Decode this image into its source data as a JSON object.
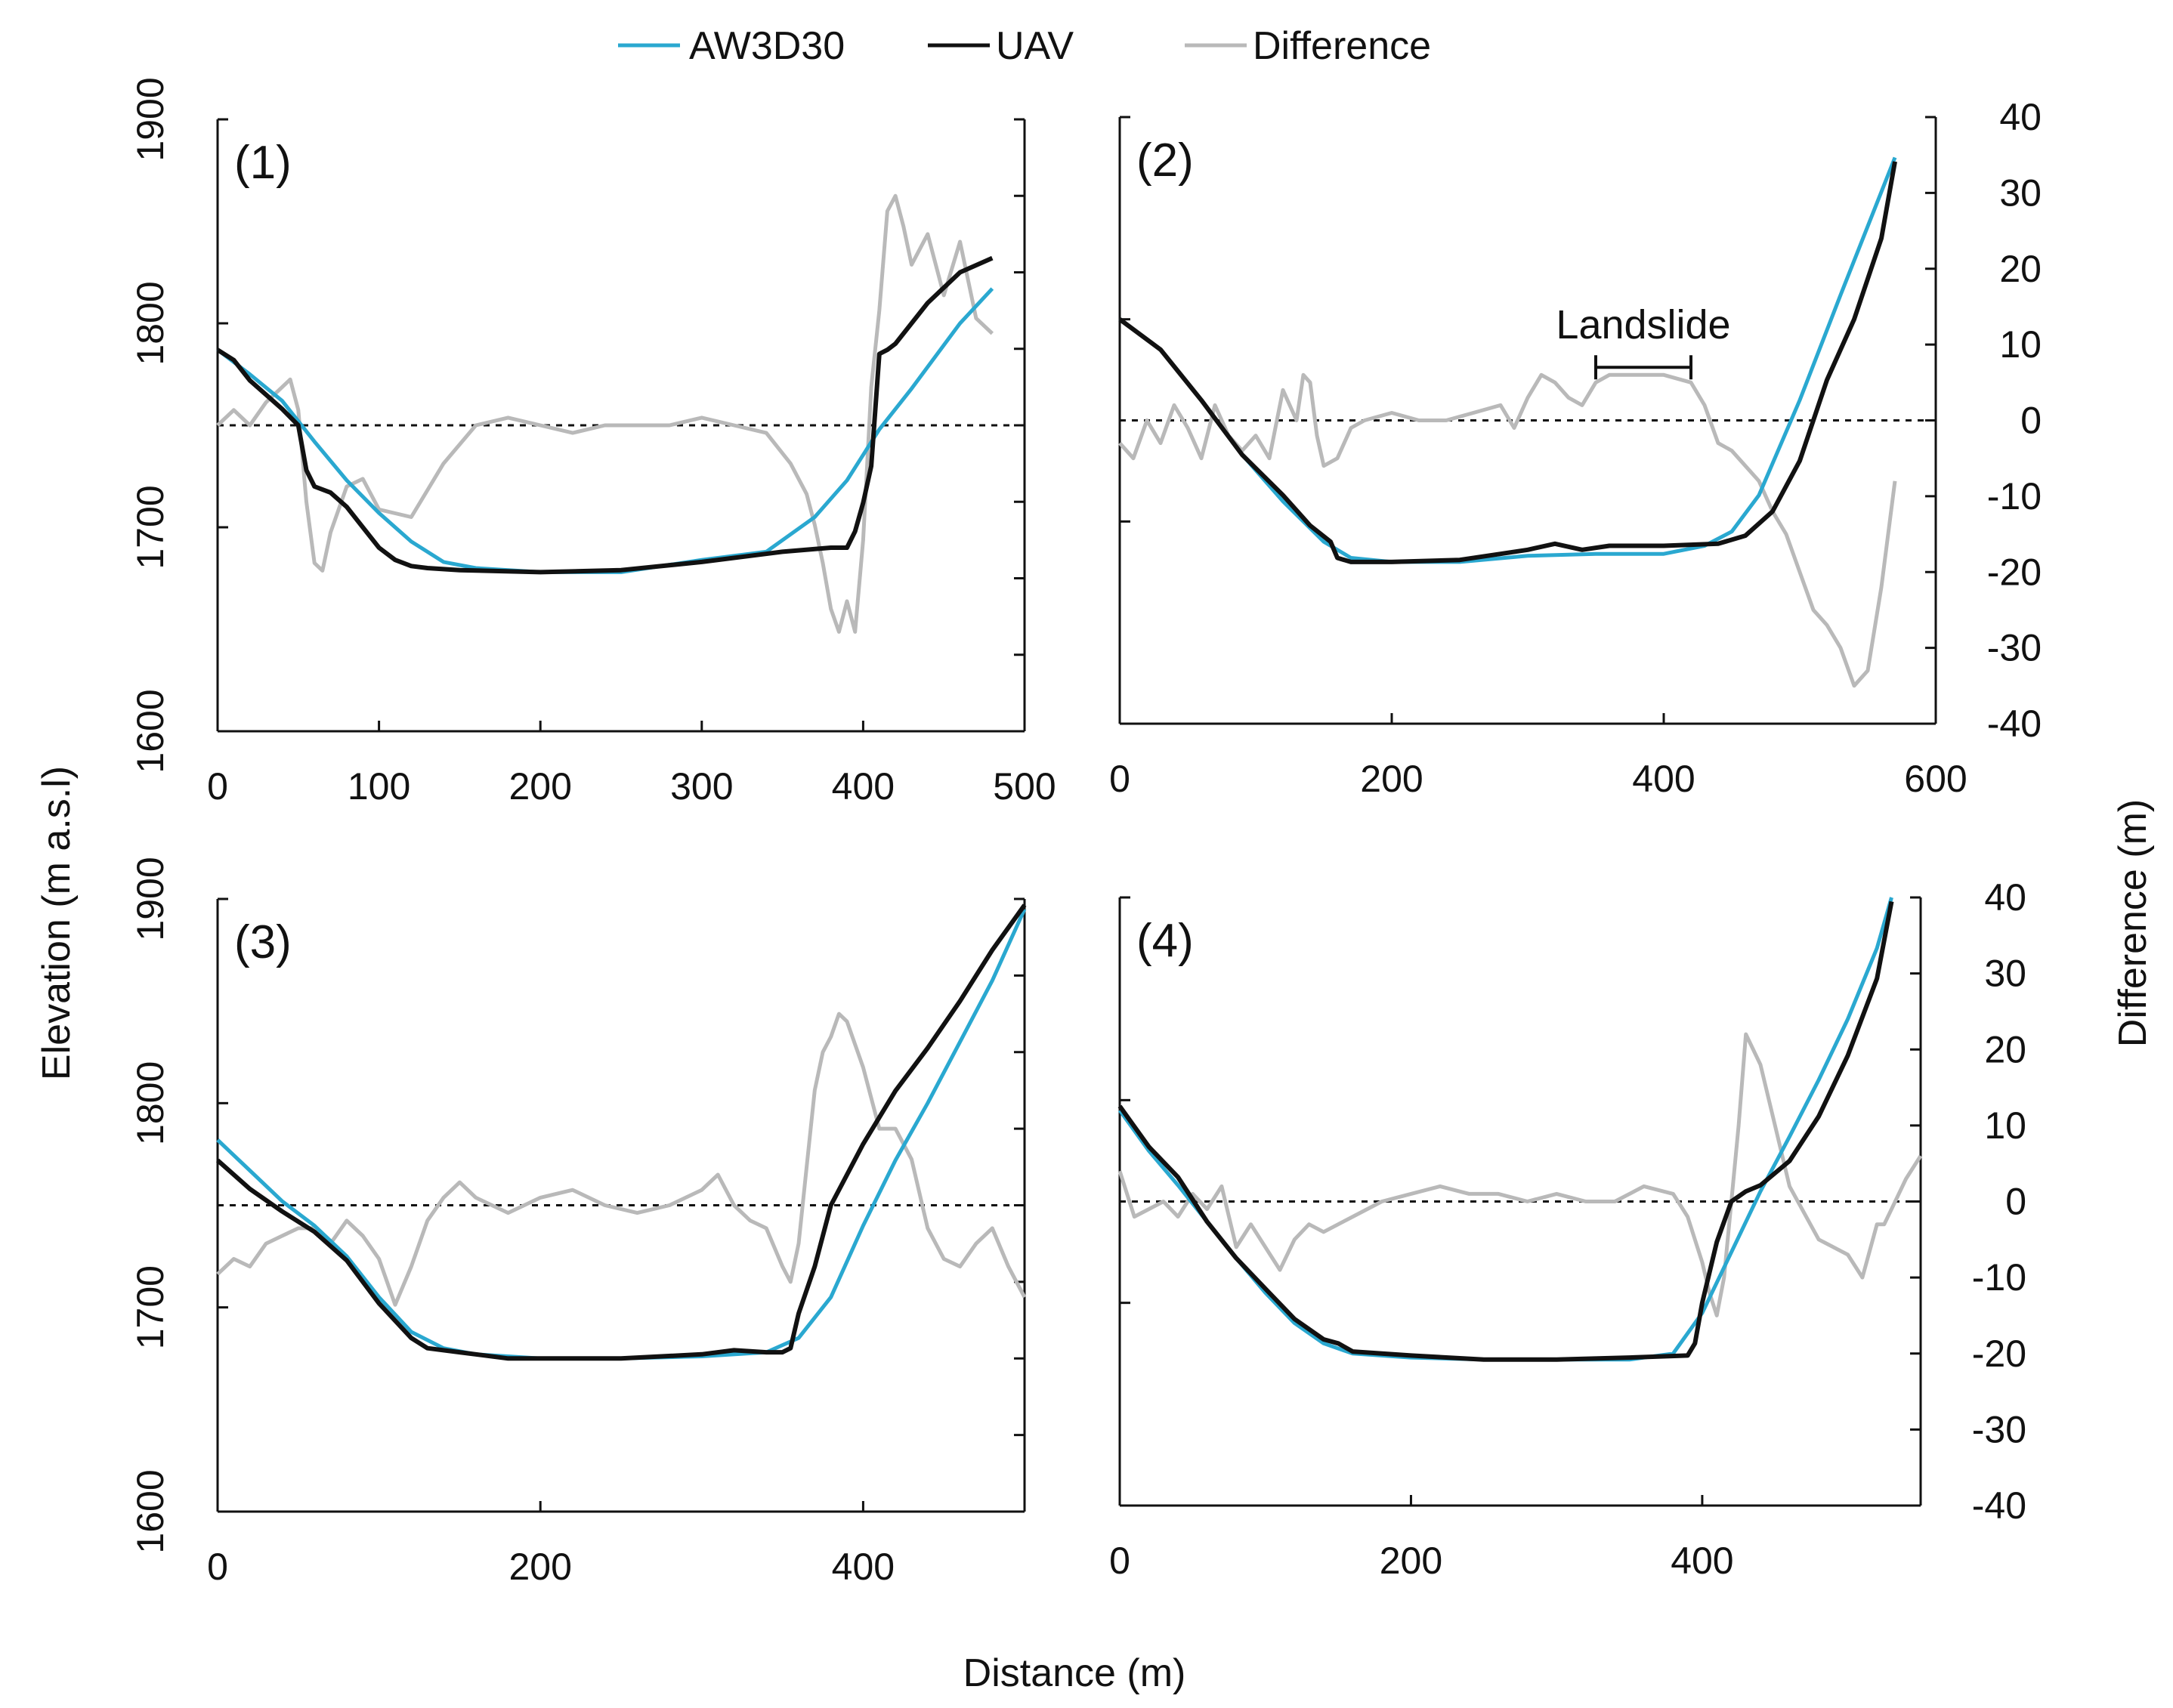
{
  "colors": {
    "aw3d30": "#2aa8d0",
    "uav": "#111111",
    "difference": "#b9b9b9",
    "zero": "#111111"
  },
  "legend": {
    "aw3d30": "AW3D30",
    "uav": "UAV",
    "difference": "Difference"
  },
  "axes": {
    "left_title": "Elevation (m a.s.l)",
    "right_title": "Difference (m)",
    "bottom_title": "Distance (m)"
  },
  "chart_data": [
    {
      "type": "line",
      "panel": "(1)",
      "xlim": [
        0,
        500
      ],
      "xticks": [
        0,
        100,
        200,
        300,
        400,
        500
      ],
      "ylim": [
        1600,
        1900
      ],
      "yticks": [
        1600,
        1700,
        1800,
        1900
      ],
      "y_labels_shown": true,
      "y2lim": [
        -40,
        40
      ],
      "y2ticks": [
        -40,
        -30,
        -20,
        -10,
        0,
        10,
        20,
        30,
        40
      ],
      "y2_labels_shown": false,
      "series": [
        {
          "name": "AW3D30",
          "x": [
            0,
            20,
            40,
            60,
            80,
            100,
            120,
            140,
            160,
            200,
            250,
            300,
            340,
            370,
            390,
            410,
            430,
            460,
            480
          ],
          "y": [
            1787,
            1775,
            1762,
            1742,
            1723,
            1707,
            1693,
            1683,
            1680,
            1678,
            1678,
            1684,
            1688,
            1705,
            1723,
            1748,
            1768,
            1800,
            1817
          ]
        },
        {
          "name": "UAV",
          "x": [
            0,
            10,
            20,
            30,
            40,
            50,
            55,
            60,
            70,
            80,
            90,
            100,
            110,
            120,
            130,
            150,
            200,
            250,
            300,
            350,
            380,
            390,
            395,
            400,
            405,
            410,
            415,
            420,
            440,
            460,
            480
          ],
          "y": [
            1787,
            1782,
            1772,
            1765,
            1758,
            1750,
            1728,
            1720,
            1717,
            1710,
            1700,
            1690,
            1684,
            1681,
            1680,
            1679,
            1678,
            1679,
            1683,
            1688,
            1690,
            1690,
            1698,
            1712,
            1730,
            1785,
            1787,
            1790,
            1810,
            1825,
            1832
          ]
        },
        {
          "name": "Difference",
          "x": [
            0,
            10,
            20,
            30,
            40,
            45,
            50,
            55,
            60,
            65,
            70,
            80,
            90,
            100,
            120,
            140,
            160,
            180,
            200,
            220,
            240,
            260,
            280,
            300,
            320,
            340,
            355,
            365,
            370,
            375,
            380,
            385,
            390,
            395,
            400,
            405,
            410,
            415,
            420,
            425,
            430,
            440,
            450,
            460,
            470,
            480
          ],
          "y": [
            0,
            2,
            0,
            3,
            5,
            6,
            2,
            -10,
            -18,
            -19,
            -14,
            -8,
            -7,
            -11,
            -12,
            -5,
            0,
            1,
            0,
            -1,
            0,
            0,
            0,
            1,
            0,
            -1,
            -5,
            -9,
            -13,
            -18,
            -24,
            -27,
            -23,
            -27,
            -15,
            5,
            15,
            28,
            30,
            26,
            21,
            25,
            17,
            24,
            14,
            12
          ]
        }
      ]
    },
    {
      "type": "line",
      "panel": "(2)",
      "xlim": [
        0,
        600
      ],
      "xticks": [
        0,
        200,
        400,
        600
      ],
      "ylim": [
        1600,
        1900
      ],
      "yticks": [
        1600,
        1700,
        1800,
        1900
      ],
      "y_labels_shown": false,
      "y2lim": [
        -40,
        40
      ],
      "y2ticks": [
        -40,
        -30,
        -20,
        -10,
        0,
        10,
        20,
        30,
        40
      ],
      "y2_labels_shown": true,
      "series": [
        {
          "name": "AW3D30",
          "x": [
            0,
            30,
            60,
            90,
            120,
            150,
            170,
            200,
            250,
            300,
            350,
            400,
            430,
            450,
            470,
            500,
            530,
            570
          ],
          "y": [
            1800,
            1785,
            1760,
            1733,
            1710,
            1690,
            1682,
            1680,
            1680,
            1683,
            1684,
            1684,
            1688,
            1695,
            1713,
            1760,
            1812,
            1880
          ]
        },
        {
          "name": "UAV",
          "x": [
            0,
            30,
            60,
            90,
            120,
            140,
            155,
            160,
            170,
            200,
            250,
            280,
            300,
            320,
            340,
            360,
            400,
            440,
            460,
            480,
            500,
            520,
            540,
            560,
            570
          ],
          "y": [
            1800,
            1785,
            1760,
            1733,
            1713,
            1698,
            1690,
            1682,
            1680,
            1680,
            1681,
            1684,
            1686,
            1689,
            1686,
            1688,
            1688,
            1689,
            1693,
            1705,
            1730,
            1770,
            1800,
            1840,
            1878
          ]
        },
        {
          "name": "Difference",
          "x": [
            0,
            10,
            20,
            30,
            40,
            50,
            60,
            70,
            80,
            90,
            100,
            110,
            120,
            130,
            135,
            140,
            145,
            150,
            160,
            170,
            180,
            200,
            220,
            240,
            260,
            280,
            290,
            300,
            310,
            320,
            330,
            340,
            350,
            360,
            380,
            400,
            420,
            430,
            440,
            450,
            460,
            470,
            480,
            490,
            500,
            510,
            520,
            530,
            540,
            550,
            560,
            570
          ],
          "y": [
            -3,
            -5,
            0,
            -3,
            2,
            -1,
            -5,
            2,
            -2,
            -4,
            -2,
            -5,
            4,
            0,
            6,
            5,
            -2,
            -6,
            -5,
            -1,
            0,
            1,
            0,
            0,
            1,
            2,
            -1,
            3,
            6,
            5,
            3,
            2,
            5,
            6,
            6,
            6,
            5,
            2,
            -3,
            -4,
            -6,
            -8,
            -12,
            -15,
            -20,
            -25,
            -27,
            -30,
            -35,
            -33,
            -22,
            -8
          ]
        }
      ]
    },
    {
      "type": "line",
      "panel": "(3)",
      "xlim": [
        0,
        500
      ],
      "xticks": [
        0,
        200,
        400
      ],
      "ylim": [
        1600,
        1900
      ],
      "yticks": [
        1600,
        1700,
        1800,
        1900
      ],
      "y_labels_shown": true,
      "y2lim": [
        -40,
        40
      ],
      "y2ticks": [
        -40,
        -30,
        -20,
        -10,
        0,
        10,
        20,
        30,
        40
      ],
      "y2_labels_shown": false,
      "series": [
        {
          "name": "AW3D30",
          "x": [
            0,
            20,
            40,
            60,
            80,
            100,
            120,
            140,
            160,
            200,
            250,
            300,
            340,
            360,
            380,
            400,
            420,
            440,
            460,
            480,
            500
          ],
          "y": [
            1782,
            1767,
            1752,
            1740,
            1725,
            1705,
            1688,
            1680,
            1677,
            1675,
            1675,
            1676,
            1678,
            1685,
            1705,
            1740,
            1772,
            1800,
            1830,
            1860,
            1895
          ]
        },
        {
          "name": "UAV",
          "x": [
            0,
            20,
            40,
            60,
            80,
            100,
            120,
            130,
            150,
            180,
            200,
            250,
            300,
            320,
            340,
            350,
            355,
            360,
            370,
            380,
            400,
            420,
            440,
            460,
            480,
            500
          ],
          "y": [
            1772,
            1758,
            1747,
            1737,
            1723,
            1702,
            1685,
            1680,
            1678,
            1675,
            1675,
            1675,
            1677,
            1679,
            1678,
            1678,
            1680,
            1697,
            1720,
            1750,
            1780,
            1806,
            1827,
            1850,
            1875,
            1897
          ]
        },
        {
          "name": "Difference",
          "x": [
            0,
            10,
            20,
            30,
            40,
            50,
            60,
            70,
            80,
            90,
            100,
            110,
            120,
            130,
            140,
            150,
            160,
            180,
            200,
            220,
            240,
            260,
            280,
            300,
            310,
            320,
            330,
            340,
            350,
            355,
            360,
            365,
            370,
            375,
            380,
            385,
            390,
            400,
            410,
            420,
            430,
            440,
            450,
            460,
            470,
            480,
            490,
            500
          ],
          "y": [
            -9,
            -7,
            -8,
            -5,
            -4,
            -3,
            -3,
            -5,
            -2,
            -4,
            -7,
            -13,
            -8,
            -2,
            1,
            3,
            1,
            -1,
            1,
            2,
            0,
            -1,
            0,
            2,
            4,
            0,
            -2,
            -3,
            -8,
            -10,
            -5,
            5,
            15,
            20,
            22,
            25,
            24,
            18,
            10,
            10,
            6,
            -3,
            -7,
            -8,
            -5,
            -3,
            -8,
            -12
          ]
        }
      ]
    },
    {
      "type": "line",
      "panel": "(4)",
      "xlim": [
        0,
        550
      ],
      "xticks": [
        0,
        200,
        400
      ],
      "ylim": [
        1600,
        1900
      ],
      "yticks": [
        1600,
        1700,
        1800,
        1900
      ],
      "y_labels_shown": false,
      "y2lim": [
        -40,
        40
      ],
      "y2ticks": [
        -40,
        -30,
        -20,
        -10,
        0,
        10,
        20,
        30,
        40
      ],
      "y2_labels_shown": true,
      "series": [
        {
          "name": "AW3D30",
          "x": [
            0,
            20,
            40,
            60,
            80,
            100,
            120,
            140,
            160,
            200,
            250,
            300,
            350,
            380,
            400,
            420,
            440,
            460,
            480,
            500,
            520,
            530
          ],
          "y": [
            1795,
            1775,
            1758,
            1740,
            1722,
            1705,
            1690,
            1680,
            1675,
            1673,
            1672,
            1672,
            1672,
            1675,
            1695,
            1725,
            1755,
            1782,
            1810,
            1840,
            1875,
            1900
          ]
        },
        {
          "name": "UAV",
          "x": [
            0,
            20,
            40,
            60,
            80,
            100,
            120,
            140,
            150,
            160,
            200,
            250,
            300,
            350,
            390,
            395,
            400,
            410,
            420,
            430,
            440,
            460,
            480,
            500,
            520,
            530
          ],
          "y": [
            1797,
            1777,
            1762,
            1740,
            1722,
            1707,
            1692,
            1682,
            1680,
            1676,
            1674,
            1672,
            1672,
            1673,
            1674,
            1680,
            1700,
            1730,
            1750,
            1755,
            1758,
            1770,
            1792,
            1822,
            1860,
            1898
          ]
        },
        {
          "name": "Difference",
          "x": [
            0,
            10,
            20,
            30,
            40,
            50,
            60,
            70,
            80,
            90,
            100,
            110,
            120,
            130,
            140,
            160,
            180,
            200,
            220,
            240,
            260,
            280,
            300,
            320,
            340,
            360,
            380,
            390,
            400,
            405,
            410,
            415,
            420,
            425,
            430,
            440,
            450,
            460,
            480,
            500,
            510,
            520,
            525,
            530,
            540,
            550
          ],
          "y": [
            4,
            -2,
            -1,
            0,
            -2,
            1,
            -1,
            2,
            -6,
            -3,
            -6,
            -9,
            -5,
            -3,
            -4,
            -2,
            0,
            1,
            2,
            1,
            1,
            0,
            1,
            0,
            0,
            2,
            1,
            -2,
            -8,
            -12,
            -15,
            -10,
            0,
            10,
            22,
            18,
            10,
            2,
            -5,
            -7,
            -10,
            -3,
            -3,
            -1,
            3,
            6
          ]
        }
      ]
    }
  ],
  "annotation": {
    "text": "Landslide",
    "x_start": 350,
    "x_end": 420,
    "diff_level": 7
  }
}
